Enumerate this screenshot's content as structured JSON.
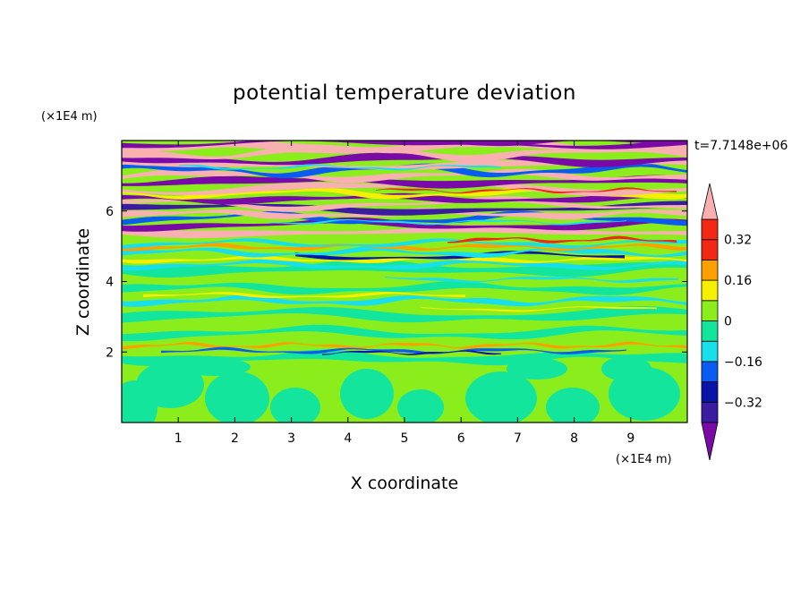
{
  "chart_data": {
    "type": "heatmap",
    "title": "potential temperature deviation",
    "xlabel": "X coordinate",
    "ylabel": "Z coordinate",
    "x_unit": "(×1E4 m)",
    "y_unit": "(×1E4 m)",
    "time_label": "t=7.7148e+06",
    "xlim": [
      0,
      10
    ],
    "ylim": [
      0,
      8
    ],
    "x_ticks": [
      1,
      2,
      3,
      4,
      5,
      6,
      7,
      8,
      9
    ],
    "y_ticks": [
      2,
      4,
      6
    ],
    "x_tick_labels": [
      "1",
      "2",
      "3",
      "4",
      "5",
      "6",
      "7",
      "8",
      "9"
    ],
    "y_tick_labels": [
      "2",
      "4",
      "6"
    ],
    "colorbar": {
      "levels": [
        -0.4,
        -0.32,
        -0.24,
        -0.16,
        -0.08,
        0,
        0.08,
        0.16,
        0.24,
        0.32,
        0.4
      ],
      "tick_values": [
        0.32,
        0.16,
        0,
        -0.16,
        -0.32
      ],
      "tick_labels": [
        "0.32",
        "0.16",
        "0",
        "−0.16",
        "−0.32"
      ],
      "colors": [
        "#7a0aa8",
        "#3a1ca0",
        "#0a14a8",
        "#0a5cf0",
        "#18e0ea",
        "#14e59c",
        "#8ced1c",
        "#f5f000",
        "#fca000",
        "#f02814",
        "#f8b0b0"
      ],
      "extend": "both"
    },
    "grid": false
  }
}
